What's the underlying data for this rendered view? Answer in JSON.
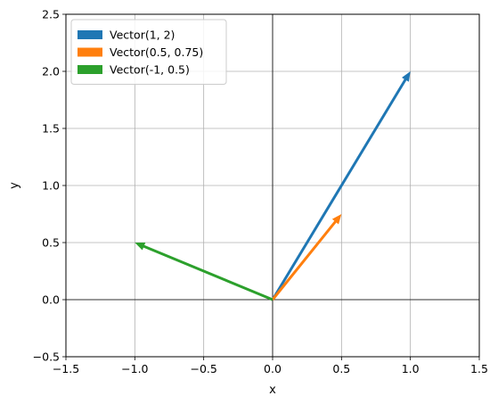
{
  "chart_data": {
    "type": "vector",
    "title": "",
    "xlabel": "x",
    "ylabel": "y",
    "xlim": [
      -1.5,
      1.5
    ],
    "ylim": [
      -0.5,
      2.5
    ],
    "xticks": [
      -1.5,
      -1.0,
      -0.5,
      0.0,
      0.5,
      1.0,
      1.5
    ],
    "xtick_labels": [
      "−1.5",
      "−1.0",
      "−0.5",
      "0.0",
      "0.5",
      "1.0",
      "1.5"
    ],
    "yticks": [
      -0.5,
      0.0,
      0.5,
      1.0,
      1.5,
      2.0,
      2.5
    ],
    "ytick_labels": [
      "−0.5",
      "0.0",
      "0.5",
      "1.0",
      "1.5",
      "2.0",
      "2.5"
    ],
    "grid": true,
    "axes_lines_through_origin": true,
    "legend_position": "top-left",
    "series": [
      {
        "name": "Vector(1, 2)",
        "origin": [
          0,
          0
        ],
        "vector": [
          1,
          2
        ],
        "color": "#1f77b4"
      },
      {
        "name": "Vector(0.5, 0.75)",
        "origin": [
          0,
          0
        ],
        "vector": [
          0.5,
          0.75
        ],
        "color": "#ff7f0e"
      },
      {
        "name": "Vector(-1, 0.5)",
        "origin": [
          0,
          0
        ],
        "vector": [
          -1,
          0.5
        ],
        "color": "#2ca02c"
      }
    ]
  }
}
